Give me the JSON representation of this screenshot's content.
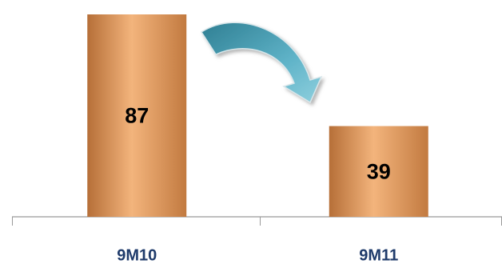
{
  "chart_data": {
    "type": "bar",
    "categories": [
      "9M10",
      "9M11"
    ],
    "values": [
      87,
      39
    ],
    "color": "#f3b47c"
  }
}
